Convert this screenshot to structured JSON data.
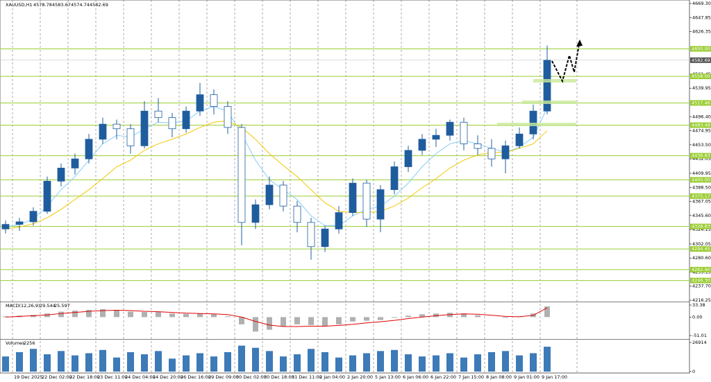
{
  "chart_data": {
    "type": "candlestick",
    "title": "XAUUSD,H1",
    "header_values": [
      4578.78,
      4583.67,
      4574.74,
      4582.69
    ],
    "open": [
      4325,
      4332,
      4336,
      4352,
      4398,
      4418,
      4432,
      4462,
      4485,
      4478,
      4452,
      4505,
      4495,
      4478,
      4505,
      4530,
      4512,
      4480,
      4335,
      4362,
      4392,
      4360,
      4335,
      4298,
      4325,
      4350,
      4395,
      4340,
      4385,
      4420,
      4445,
      4462,
      4468,
      4488,
      4455,
      4448,
      4432,
      4452,
      4470,
      4505
    ],
    "high": [
      4338,
      4342,
      4358,
      4405,
      4425,
      4440,
      4470,
      4495,
      4492,
      4485,
      4520,
      4525,
      4502,
      4512,
      4548,
      4538,
      4520,
      4485,
      4370,
      4405,
      4398,
      4368,
      4342,
      4330,
      4360,
      4402,
      4400,
      4392,
      4428,
      4452,
      4470,
      4478,
      4492,
      4495,
      4468,
      4462,
      4460,
      4480,
      4515,
      4605
    ],
    "low": [
      4318,
      4322,
      4330,
      4348,
      4390,
      4408,
      4425,
      4455,
      4462,
      4440,
      4448,
      4488,
      4465,
      4472,
      4498,
      4500,
      4470,
      4300,
      4325,
      4355,
      4352,
      4320,
      4278,
      4290,
      4318,
      4345,
      4328,
      4320,
      4378,
      4412,
      4438,
      4450,
      4460,
      4445,
      4438,
      4420,
      4410,
      4448,
      4462,
      4500
    ],
    "close": [
      4332,
      4336,
      4352,
      4398,
      4418,
      4432,
      4462,
      4485,
      4478,
      4452,
      4505,
      4495,
      4478,
      4505,
      4530,
      4512,
      4480,
      4335,
      4362,
      4392,
      4360,
      4335,
      4298,
      4325,
      4350,
      4395,
      4340,
      4385,
      4420,
      4445,
      4462,
      4468,
      4488,
      4455,
      4448,
      4432,
      4452,
      4470,
      4505,
      4582.69
    ],
    "color": "#1f5c9e",
    "moving_averages": [
      {
        "color": "#87cefa",
        "values": [
          4328,
          4332,
          4340,
          4360,
          4385,
          4405,
          4430,
          4455,
          4468,
          4465,
          4478,
          4488,
          4487,
          4490,
          4505,
          4512,
          4505,
          4470,
          4430,
          4400,
          4385,
          4370,
          4345,
          4330,
          4330,
          4345,
          4355,
          4360,
          4375,
          4395,
          4420,
          4440,
          4455,
          4460,
          4455,
          4448,
          4442,
          4450,
          4465,
          4510
        ]
      },
      {
        "color": "#f2c700",
        "values": [
          4325,
          4328,
          4333,
          4342,
          4355,
          4370,
          4385,
          4402,
          4420,
          4430,
          4445,
          4455,
          4462,
          4470,
          4480,
          4488,
          4490,
          4480,
          4462,
          4440,
          4422,
          4405,
          4385,
          4365,
          4352,
          4350,
          4350,
          4352,
          4360,
          4372,
          4388,
          4402,
          4418,
          4430,
          4438,
          4442,
          4442,
          4448,
          4455,
          4475
        ]
      }
    ],
    "ylim": [
      4216.25,
      4669.3
    ],
    "yticks": [
      {
        "value": 4669.3,
        "label": "4669.30"
      },
      4647.85,
      4626.35,
      4561.45,
      4539.95,
      {
        "value": 4496.4,
        "label": "4496.40"
      },
      4474.95,
      {
        "value": 4453.5,
        "label": "4453.50"
      },
      4432.05,
      4409.95,
      {
        "value": 4388.5,
        "label": "4388.50"
      },
      4367.05,
      {
        "value": 4345.6,
        "label": "4345.60"
      },
      4324.15,
      4302.05,
      {
        "value": 4280.6,
        "label": "4280.60"
      },
      4259.15,
      {
        "value": 4237.7,
        "label": "4237.70"
      },
      4216.25
    ],
    "levels": [
      {
        "value": 4600,
        "label": "4600.00"
      },
      {
        "value": 4558,
        "label": "4558.00"
      },
      {
        "value": 4517.46,
        "label": "4517.46"
      },
      {
        "value": 4483.49,
        "label": "4483.49"
      },
      {
        "value": 4436.83,
        "label": "4436.83"
      },
      {
        "value": 4400,
        "label": "4400.00"
      },
      {
        "value": 4375.17,
        "label": "4375.17"
      },
      {
        "value": 4328.83,
        "label": "4328.83"
      },
      {
        "value": 4294.45,
        "label": "4294.45"
      },
      {
        "value": 4262.9,
        "label": "4262.90"
      },
      {
        "value": 4246.3,
        "label": "4246.30"
      }
    ],
    "level_color": "#9acd32",
    "current_price": 4582.69,
    "xlabels": [
      "19 Dec 2025",
      "22 Dec 02:00",
      "22 Dec 18:00",
      "23 Dec 11:00",
      "24 Dec 04:00",
      "24 Dec 20:00",
      "26 Dec 16:00",
      "29 Dec 09:00",
      "30 Dec 02:00",
      "30 Dec 18:00",
      "31 Dec 11:00",
      "2 Jan 04:00",
      "2 Jan 20:00",
      "5 Jan 13:00",
      "6 Jan 06:00",
      "6 Jan 22:00",
      "7 Jan 15:00",
      "8 Jan 08:00",
      "9 Jan 01:00",
      "9 Jan 17:00"
    ],
    "macd": {
      "label": "MACD(12,26,9)",
      "main_value": 29.544,
      "signal_value": 25.597,
      "histogram": [
        2,
        4,
        6,
        10,
        15,
        18,
        20,
        22,
        20,
        15,
        14,
        14,
        10,
        9,
        10,
        8,
        2,
        -20,
        -40,
        -35,
        -25,
        -20,
        -22,
        -25,
        -20,
        -12,
        -10,
        -8,
        -2,
        4,
        8,
        10,
        12,
        10,
        5,
        0,
        -2,
        2,
        10,
        29.544
      ],
      "signal": [
        0,
        2,
        4,
        6,
        10,
        13,
        16,
        18,
        19,
        18,
        16,
        15,
        13,
        11,
        10,
        9,
        7,
        0,
        -12,
        -22,
        -26,
        -26,
        -25,
        -25,
        -23,
        -20,
        -16,
        -13,
        -9,
        -4,
        0,
        4,
        7,
        9,
        8,
        5,
        2,
        1,
        5,
        25.597
      ],
      "hist_color": "#b0b0b0",
      "signal_color": "#e00000",
      "ylim": [
        -51.01,
        33.38
      ],
      "yticks": [
        33.38,
        {
          "value": 0,
          "label": "0.00"
        },
        -51.01
      ]
    },
    "volume": {
      "label": "Volumes",
      "last": 2256,
      "color": "#3d7ab8",
      "values": [
        14000,
        18000,
        21000,
        16000,
        19000,
        15000,
        17000,
        20000,
        13000,
        18000,
        16000,
        19000,
        12000,
        15000,
        17000,
        14000,
        18000,
        24000,
        22000,
        19000,
        14000,
        16000,
        21000,
        18000,
        13000,
        15000,
        17000,
        19000,
        20000,
        16000,
        14000,
        15000,
        17000,
        13000,
        16000,
        18000,
        19000,
        15000,
        17000,
        23000
      ],
      "ylim": [
        0,
        26914
      ],
      "yticks": [
        26914,
        0
      ]
    }
  }
}
